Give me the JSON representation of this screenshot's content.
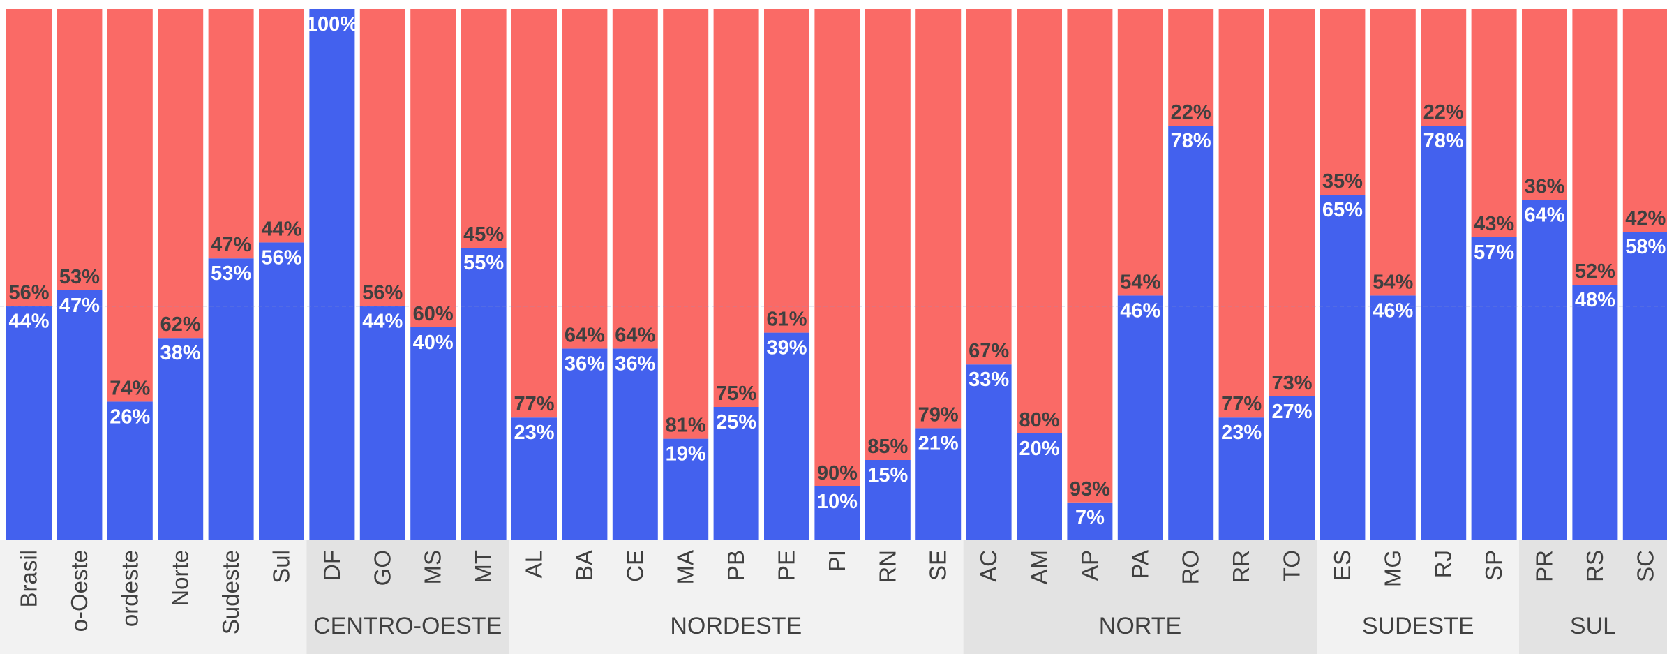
{
  "colors": {
    "blue": "#4361EE",
    "red": "#FA6A66",
    "grid": "#8A94C8",
    "axis_band_light": "#F2F2F2",
    "axis_band_dark": "#E3E3E3",
    "label_dark": "#404040",
    "label_light": "#FFFFFF"
  },
  "chart_data": {
    "type": "bar",
    "stacked": true,
    "ylim": [
      0,
      100
    ],
    "reference_line": 44,
    "categories": [
      "Brasil",
      "Centro-Oeste",
      "Nordeste",
      "Norte",
      "Sudeste",
      "Sul",
      "DF",
      "GO",
      "MS",
      "MT",
      "AL",
      "BA",
      "CE",
      "MA",
      "PB",
      "PE",
      "PI",
      "RN",
      "SE",
      "AC",
      "AM",
      "AP",
      "PA",
      "RO",
      "RR",
      "TO",
      "ES",
      "MG",
      "RJ",
      "SP",
      "PR",
      "RS",
      "SC"
    ],
    "category_labels": [
      "Brasil",
      "o-Oeste",
      "ordeste",
      "Norte",
      "Sudeste",
      "Sul",
      "DF",
      "GO",
      "MS",
      "MT",
      "AL",
      "BA",
      "CE",
      "MA",
      "PB",
      "PE",
      "PI",
      "RN",
      "SE",
      "AC",
      "AM",
      "AP",
      "PA",
      "RO",
      "RR",
      "TO",
      "ES",
      "MG",
      "RJ",
      "SP",
      "PR",
      "RS",
      "SC"
    ],
    "series": [
      {
        "color": "#4361EE",
        "values": [
          44,
          47,
          26,
          38,
          53,
          56,
          100,
          44,
          40,
          55,
          23,
          36,
          36,
          19,
          25,
          39,
          10,
          15,
          21,
          33,
          20,
          7,
          46,
          78,
          23,
          27,
          65,
          46,
          78,
          57,
          64,
          48,
          58
        ],
        "labels": [
          "44%",
          "47%",
          "26%",
          "38%",
          "53%",
          "56%",
          "100%",
          "44%",
          "40%",
          "55%",
          "23%",
          "36%",
          "36%",
          "19%",
          "25%",
          "39%",
          "10%",
          "15%",
          "21%",
          "33%",
          "20%",
          "7%",
          "46%",
          "78%",
          "23%",
          "27%",
          "65%",
          "46%",
          "78%",
          "57%",
          "64%",
          "48%",
          "58%"
        ]
      },
      {
        "color": "#FA6A66",
        "values": [
          56,
          53,
          74,
          62,
          47,
          44,
          0,
          56,
          60,
          45,
          77,
          64,
          64,
          81,
          75,
          61,
          90,
          85,
          79,
          67,
          80,
          93,
          54,
          22,
          77,
          73,
          35,
          54,
          22,
          43,
          36,
          52,
          42
        ],
        "labels": [
          "56%",
          "53%",
          "74%",
          "62%",
          "47%",
          "44%",
          "",
          "56%",
          "60%",
          "45%",
          "77%",
          "64%",
          "64%",
          "81%",
          "75%",
          "61%",
          "90%",
          "85%",
          "79%",
          "67%",
          "80%",
          "93%",
          "54%",
          "22%",
          "77%",
          "73%",
          "35%",
          "54%",
          "22%",
          "43%",
          "36%",
          "52%",
          "42%"
        ]
      }
    ],
    "groups": [
      {
        "label": "",
        "start": 0,
        "end": 5
      },
      {
        "label": "CENTRO-OESTE",
        "start": 6,
        "end": 9
      },
      {
        "label": "NORDESTE",
        "start": 10,
        "end": 18
      },
      {
        "label": "NORTE",
        "start": 19,
        "end": 25
      },
      {
        "label": "SUDESTE",
        "start": 26,
        "end": 29
      },
      {
        "label": "SUL",
        "start": 30,
        "end": 32
      }
    ]
  }
}
